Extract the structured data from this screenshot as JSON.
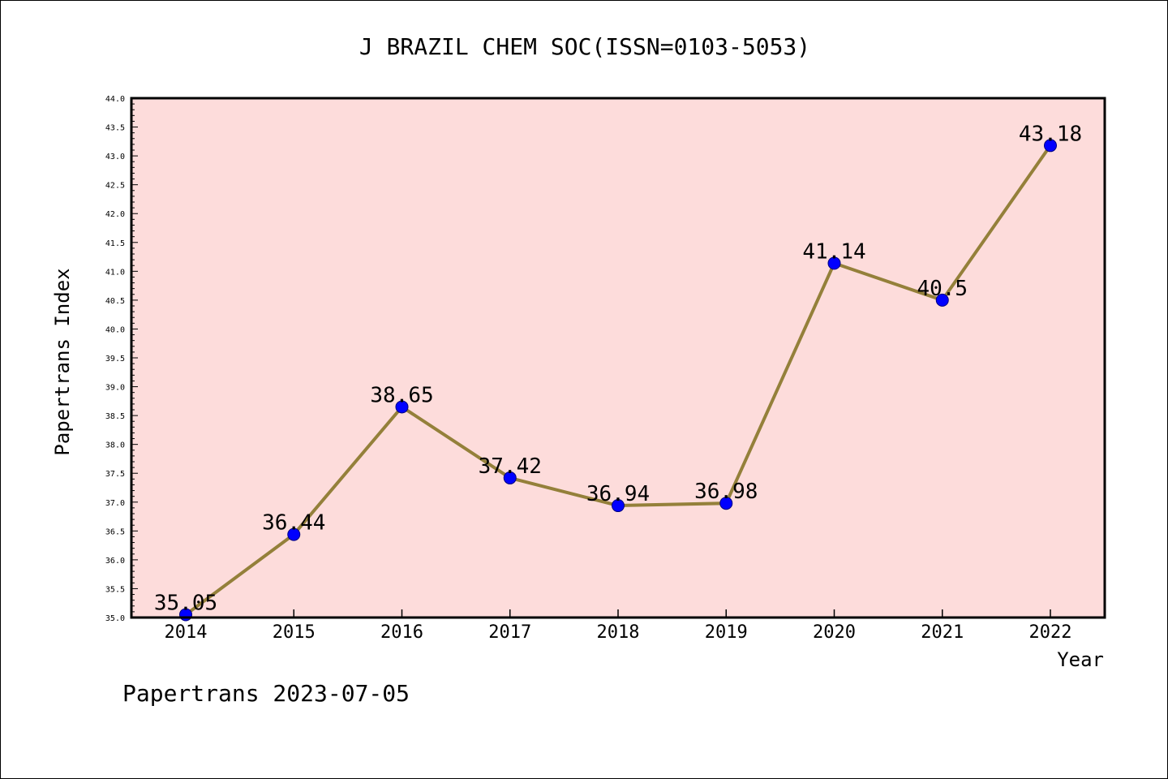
{
  "chart_data": {
    "type": "line",
    "title": "J BRAZIL CHEM SOC(ISSN=0103-5053)",
    "xlabel": "Year",
    "ylabel": "Papertrans Index",
    "categories": [
      "2014",
      "2015",
      "2016",
      "2017",
      "2018",
      "2019",
      "2020",
      "2021",
      "2022"
    ],
    "series": [
      {
        "values": [
          35.05,
          36.44,
          38.65,
          37.42,
          36.94,
          36.98,
          41.14,
          40.5,
          43.18
        ],
        "labels": [
          "35.05",
          "36.44",
          "38.65",
          "37.42",
          "36.94",
          "36.98",
          "41.14",
          "40.5",
          "43.18"
        ]
      }
    ],
    "ylim": [
      35.0,
      44.0
    ],
    "ytick_labels": [
      "35.0",
      "35.5",
      "36.0",
      "36.5",
      "37.0",
      "37.5",
      "38.0",
      "38.5",
      "39.0",
      "39.5",
      "40.0",
      "40.5",
      "41.0",
      "41.5",
      "42.0",
      "42.5",
      "43.0",
      "43.5",
      "44.0"
    ],
    "grid": false,
    "colors": {
      "plot_background": "#fddcdb",
      "line": "#94803a",
      "marker_fill": "#0000ff",
      "marker_edge": "#000080"
    }
  },
  "footer": "Papertrans 2023-07-05"
}
